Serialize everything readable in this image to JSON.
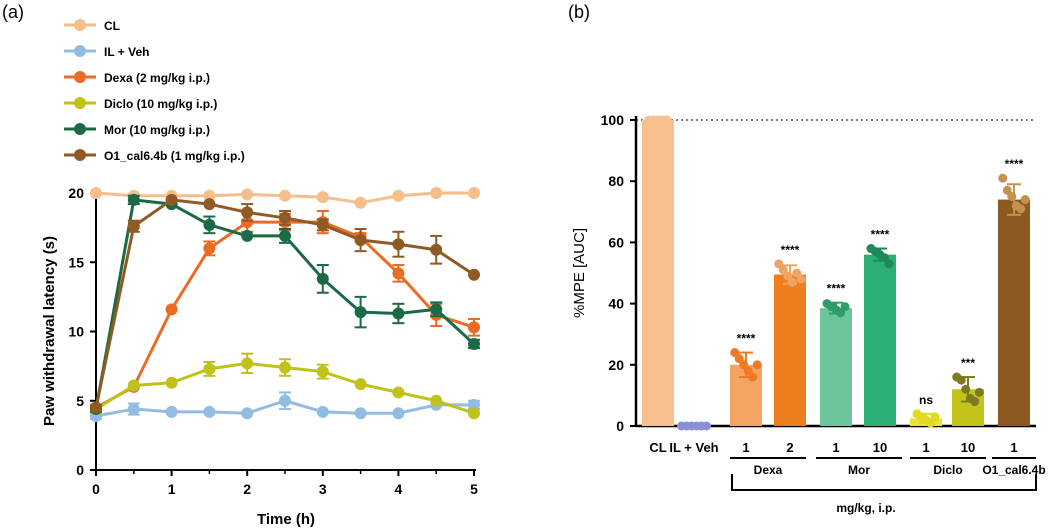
{
  "chart_data": [
    {
      "type": "line",
      "panel_label": "(a)",
      "xlabel": "Time (h)",
      "ylabel": "Paw withdrawal latency (s)",
      "xlim": [
        0,
        5
      ],
      "ylim": [
        0,
        20
      ],
      "xticks": [
        "0",
        "1",
        "2",
        "3",
        "4",
        "5"
      ],
      "yticks": [
        "0",
        "5",
        "10",
        "15",
        "20"
      ],
      "x": [
        0,
        0.5,
        1,
        1.5,
        2,
        2.5,
        3,
        3.5,
        4,
        4.5,
        5
      ],
      "series": [
        {
          "name": "CL",
          "color": "#F5BE8A",
          "values": [
            20,
            19.8,
            19.8,
            19.8,
            19.9,
            19.8,
            19.7,
            19.3,
            19.8,
            20,
            20
          ],
          "errors": [
            0,
            0,
            0,
            0,
            0,
            0,
            0,
            0,
            0,
            0,
            0
          ]
        },
        {
          "name": "IL + Veh",
          "color": "#93BCE3",
          "values": [
            3.9,
            4.4,
            4.2,
            4.2,
            4.1,
            5.0,
            4.2,
            4.1,
            4.1,
            4.7,
            4.7
          ],
          "errors": [
            0.2,
            0.4,
            0,
            0,
            0,
            0.6,
            0,
            0,
            0,
            0,
            0.3
          ]
        },
        {
          "name": "Dexa (2 mg/kg i.p.)",
          "color": "#EB6A24",
          "values": [
            4.5,
            6.0,
            11.6,
            16.0,
            17.9,
            17.9,
            17.9,
            16.8,
            14.2,
            11.2,
            10.3
          ],
          "errors": [
            0.2,
            0,
            0,
            0.5,
            0.7,
            0.6,
            0.8,
            0.3,
            0.6,
            0.8,
            0.6
          ]
        },
        {
          "name": "Diclo (10 mg/kg i.p.)",
          "color": "#BEC21A",
          "values": [
            4.4,
            6.1,
            6.3,
            7.3,
            7.7,
            7.4,
            7.1,
            6.2,
            5.6,
            5.0,
            4.1
          ],
          "errors": [
            0.3,
            0,
            0,
            0.5,
            0.7,
            0.6,
            0.5,
            0,
            0,
            0,
            0
          ]
        },
        {
          "name": "Mor (10 mg/kg i.p.)",
          "color": "#1A6B45",
          "values": [
            4.4,
            19.5,
            19.2,
            17.7,
            16.9,
            16.9,
            13.8,
            11.4,
            11.3,
            11.6,
            9.1
          ],
          "errors": [
            0.2,
            0.3,
            0,
            0.6,
            0,
            0.5,
            1.0,
            1.1,
            0.7,
            0.5,
            0.3
          ]
        },
        {
          "name": "O1_cal6.4b (1 mg/kg i.p.)",
          "color": "#8F5A24",
          "values": [
            4.5,
            17.6,
            19.5,
            19.2,
            18.6,
            18.2,
            17.7,
            16.6,
            16.3,
            15.9,
            14.1
          ],
          "errors": [
            0.2,
            0.4,
            0,
            0,
            0.6,
            0.5,
            0.4,
            0.8,
            0.9,
            1.0,
            0
          ]
        }
      ]
    },
    {
      "type": "bar",
      "panel_label": "(b)",
      "ylabel": "%MPE [AUC]",
      "ylim": [
        0,
        100
      ],
      "yticks": [
        "0",
        "20",
        "40",
        "60",
        "80",
        "100"
      ],
      "bars": [
        {
          "label": "CL",
          "value": 100,
          "error": 0,
          "color": "#F8C08F",
          "dot_color": "#F8C08F",
          "sig": "",
          "points": [
            100,
            100,
            100,
            100,
            100
          ]
        },
        {
          "label": "IL + Veh",
          "value": 0,
          "error": 0,
          "color": "#8A8FD9",
          "dot_color": "#8A8FD9",
          "sig": "",
          "points": [
            0,
            0,
            0,
            0,
            0,
            0
          ]
        },
        {
          "label": "1",
          "value": 20,
          "error": 4,
          "color": "#F3A462",
          "dot_color": "#EE7A24",
          "sig": "****",
          "points": [
            24,
            22,
            20,
            18,
            16,
            20
          ]
        },
        {
          "label": "2",
          "value": 49.5,
          "error": 3,
          "color": "#EE7D1E",
          "dot_color": "#F0A463",
          "sig": "****",
          "points": [
            53,
            51,
            49,
            47,
            50,
            48
          ]
        },
        {
          "label": "1",
          "value": 38.5,
          "error": 1.8,
          "color": "#6CC49A",
          "dot_color": "#2E9E68",
          "sig": "****",
          "points": [
            40,
            39,
            38,
            37,
            39
          ]
        },
        {
          "label": "10",
          "value": 56,
          "error": 2,
          "color": "#2BAF73",
          "dot_color": "#1F8A58",
          "sig": "****",
          "points": [
            58,
            57,
            56,
            55,
            53
          ]
        },
        {
          "label": "1",
          "value": 2.5,
          "error": 1.5,
          "color": "#EBE33A",
          "dot_color": "#E2DA22",
          "sig": "ns",
          "points": [
            4,
            3,
            2,
            1,
            3
          ]
        },
        {
          "label": "10",
          "value": 12,
          "error": 4,
          "color": "#C2C41C",
          "dot_color": "#7E7A22",
          "sig": "***",
          "points": [
            16,
            15,
            12,
            9,
            8,
            11
          ]
        },
        {
          "label": "1",
          "value": 74,
          "error": 5,
          "color": "#8A5A21",
          "dot_color": "#C4914F",
          "sig": "****",
          "points": [
            81,
            77,
            75,
            72,
            71,
            74
          ]
        }
      ],
      "groups": [
        "Dexa",
        "Mor",
        "Diclo",
        "O1_cal6.4b"
      ],
      "bracket_label": "mg/kg, i.p."
    }
  ]
}
